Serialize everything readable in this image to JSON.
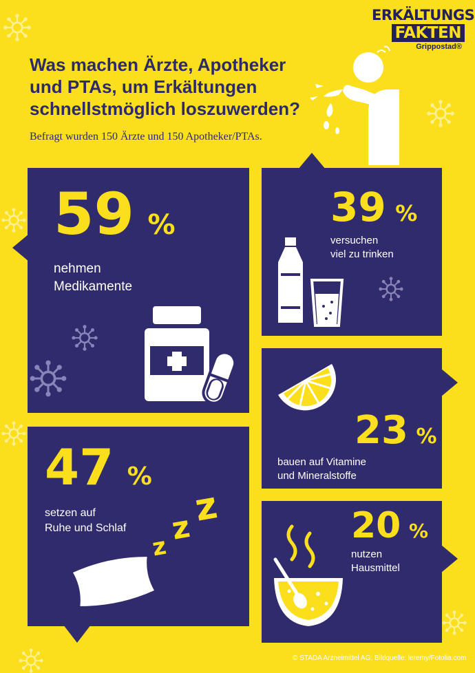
{
  "logo": {
    "line1": "ERKÄLTUNGS",
    "line2": "FAKTEN",
    "line3": "Grippostad®"
  },
  "headline": {
    "line1": "Was machen Ärzte, Apotheker",
    "line2": "und PTAs, um Erkältungen",
    "line3": "schnellstmöglich loszuwerden?"
  },
  "subline": "Befragt wurden 150 Ärzte und 150 Apotheker/PTAs.",
  "panels": {
    "medikamente": {
      "value": "59",
      "sign": "%",
      "label": "nehmen\nMedikamente"
    },
    "trinken": {
      "value": "39",
      "sign": "%",
      "label": "versuchen\nviel zu trinken"
    },
    "vitamine": {
      "value": "23",
      "sign": "%",
      "label": "bauen auf Vitamine\nund Mineralstoffe"
    },
    "schlaf": {
      "value": "47",
      "sign": "%",
      "label": "setzen auf\nRuhe und Schlaf"
    },
    "hausmittel": {
      "value": "20",
      "sign": "%",
      "label": "nutzen\nHausmittel"
    }
  },
  "colors": {
    "background": "#fbdf1c",
    "panel": "#302b6c",
    "accent": "#fbdf1c",
    "text": "#ffffff",
    "headline": "#2d2a6a"
  },
  "icons": [
    "virus-icon",
    "sneezing-person-icon",
    "medicine-bottle-icon",
    "pill-icon",
    "water-bottle-icon",
    "glass-icon",
    "lemon-slice-icon",
    "pillow-icon",
    "zzz-icon",
    "soup-bowl-icon"
  ],
  "credit": "© STADA Arzneimittel AG; Bildquelle: leremy/Fotolia.com"
}
